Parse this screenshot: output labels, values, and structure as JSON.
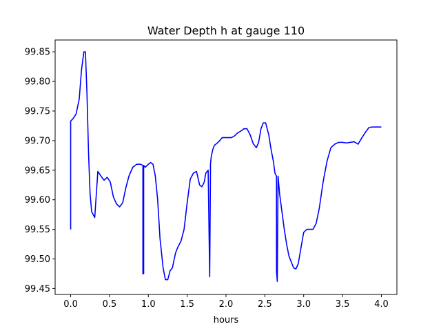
{
  "chart_data": {
    "type": "line",
    "title": "Water Depth h at gauge 110",
    "xlabel": "hours",
    "ylabel": "",
    "xlim": [
      -0.2,
      4.2
    ],
    "ylim": [
      99.44,
      99.87
    ],
    "xticks": [
      0.0,
      0.5,
      1.0,
      1.5,
      2.0,
      2.5,
      3.0,
      3.5,
      4.0
    ],
    "xtick_labels": [
      "0.0",
      "0.5",
      "1.0",
      "1.5",
      "2.0",
      "2.5",
      "3.0",
      "3.5",
      "4.0"
    ],
    "yticks": [
      99.45,
      99.5,
      99.55,
      99.6,
      99.65,
      99.7,
      99.75,
      99.8,
      99.85
    ],
    "ytick_labels": [
      "99.45",
      "99.50",
      "99.55",
      "99.60",
      "99.65",
      "99.70",
      "99.75",
      "99.80",
      "99.85"
    ],
    "grid": false,
    "series": [
      {
        "color": "#0000ff",
        "x": [
          0.0,
          0.0,
          0.03,
          0.07,
          0.11,
          0.14,
          0.17,
          0.19,
          0.21,
          0.23,
          0.25,
          0.27,
          0.31,
          0.35,
          0.39,
          0.43,
          0.47,
          0.51,
          0.55,
          0.59,
          0.63,
          0.67,
          0.71,
          0.75,
          0.8,
          0.85,
          0.9,
          0.93,
          0.93,
          0.94,
          0.94,
          0.96,
          1.0,
          1.03,
          1.06,
          1.09,
          1.12,
          1.15,
          1.19,
          1.22,
          1.25,
          1.28,
          1.31,
          1.35,
          1.38,
          1.42,
          1.46,
          1.5,
          1.54,
          1.58,
          1.62,
          1.66,
          1.69,
          1.72,
          1.74,
          1.77,
          1.79,
          1.79,
          1.8,
          1.8,
          1.81,
          1.83,
          1.85,
          1.88,
          1.92,
          1.95,
          1.99,
          2.03,
          2.07,
          2.11,
          2.15,
          2.19,
          2.23,
          2.27,
          2.31,
          2.35,
          2.39,
          2.42,
          2.45,
          2.48,
          2.51,
          2.55,
          2.58,
          2.61,
          2.63,
          2.65,
          2.65,
          2.66,
          2.66,
          2.67,
          2.67,
          2.69,
          2.72,
          2.75,
          2.78,
          2.81,
          2.84,
          2.87,
          2.9,
          2.93,
          2.96,
          3.0,
          3.04,
          3.08,
          3.12,
          3.16,
          3.2,
          3.25,
          3.3,
          3.35,
          3.4,
          3.45,
          3.5,
          3.55,
          3.6,
          3.65,
          3.7,
          3.75,
          3.8,
          3.84,
          3.88,
          3.91,
          3.94,
          3.97,
          4.0
        ],
        "y": [
          99.55,
          99.733,
          99.737,
          99.745,
          99.77,
          99.82,
          99.85,
          99.85,
          99.78,
          99.68,
          99.61,
          99.58,
          99.57,
          99.648,
          99.64,
          99.633,
          99.638,
          99.63,
          99.605,
          99.593,
          99.588,
          99.595,
          99.62,
          99.64,
          99.655,
          99.66,
          99.66,
          99.658,
          99.475,
          99.475,
          99.658,
          99.655,
          99.66,
          99.663,
          99.66,
          99.64,
          99.6,
          99.535,
          99.485,
          99.465,
          99.465,
          99.48,
          99.485,
          99.51,
          99.52,
          99.53,
          99.55,
          99.595,
          99.635,
          99.645,
          99.648,
          99.625,
          99.622,
          99.63,
          99.645,
          99.65,
          99.47,
          99.47,
          99.65,
          99.66,
          99.673,
          99.685,
          99.692,
          99.695,
          99.7,
          99.705,
          99.705,
          99.705,
          99.705,
          99.708,
          99.713,
          99.716,
          99.72,
          99.72,
          99.71,
          99.695,
          99.688,
          99.697,
          99.72,
          99.73,
          99.73,
          99.71,
          99.685,
          99.665,
          99.645,
          99.64,
          99.48,
          99.462,
          99.462,
          99.638,
          99.64,
          99.61,
          99.58,
          99.55,
          99.525,
          99.505,
          99.495,
          99.485,
          99.483,
          99.492,
          99.515,
          99.545,
          99.55,
          99.55,
          99.55,
          99.56,
          99.585,
          99.63,
          99.665,
          99.688,
          99.694,
          99.697,
          99.697,
          99.696,
          99.697,
          99.698,
          99.694,
          99.705,
          99.715,
          99.722,
          99.723,
          99.723,
          99.723,
          99.723,
          99.723
        ]
      }
    ]
  }
}
